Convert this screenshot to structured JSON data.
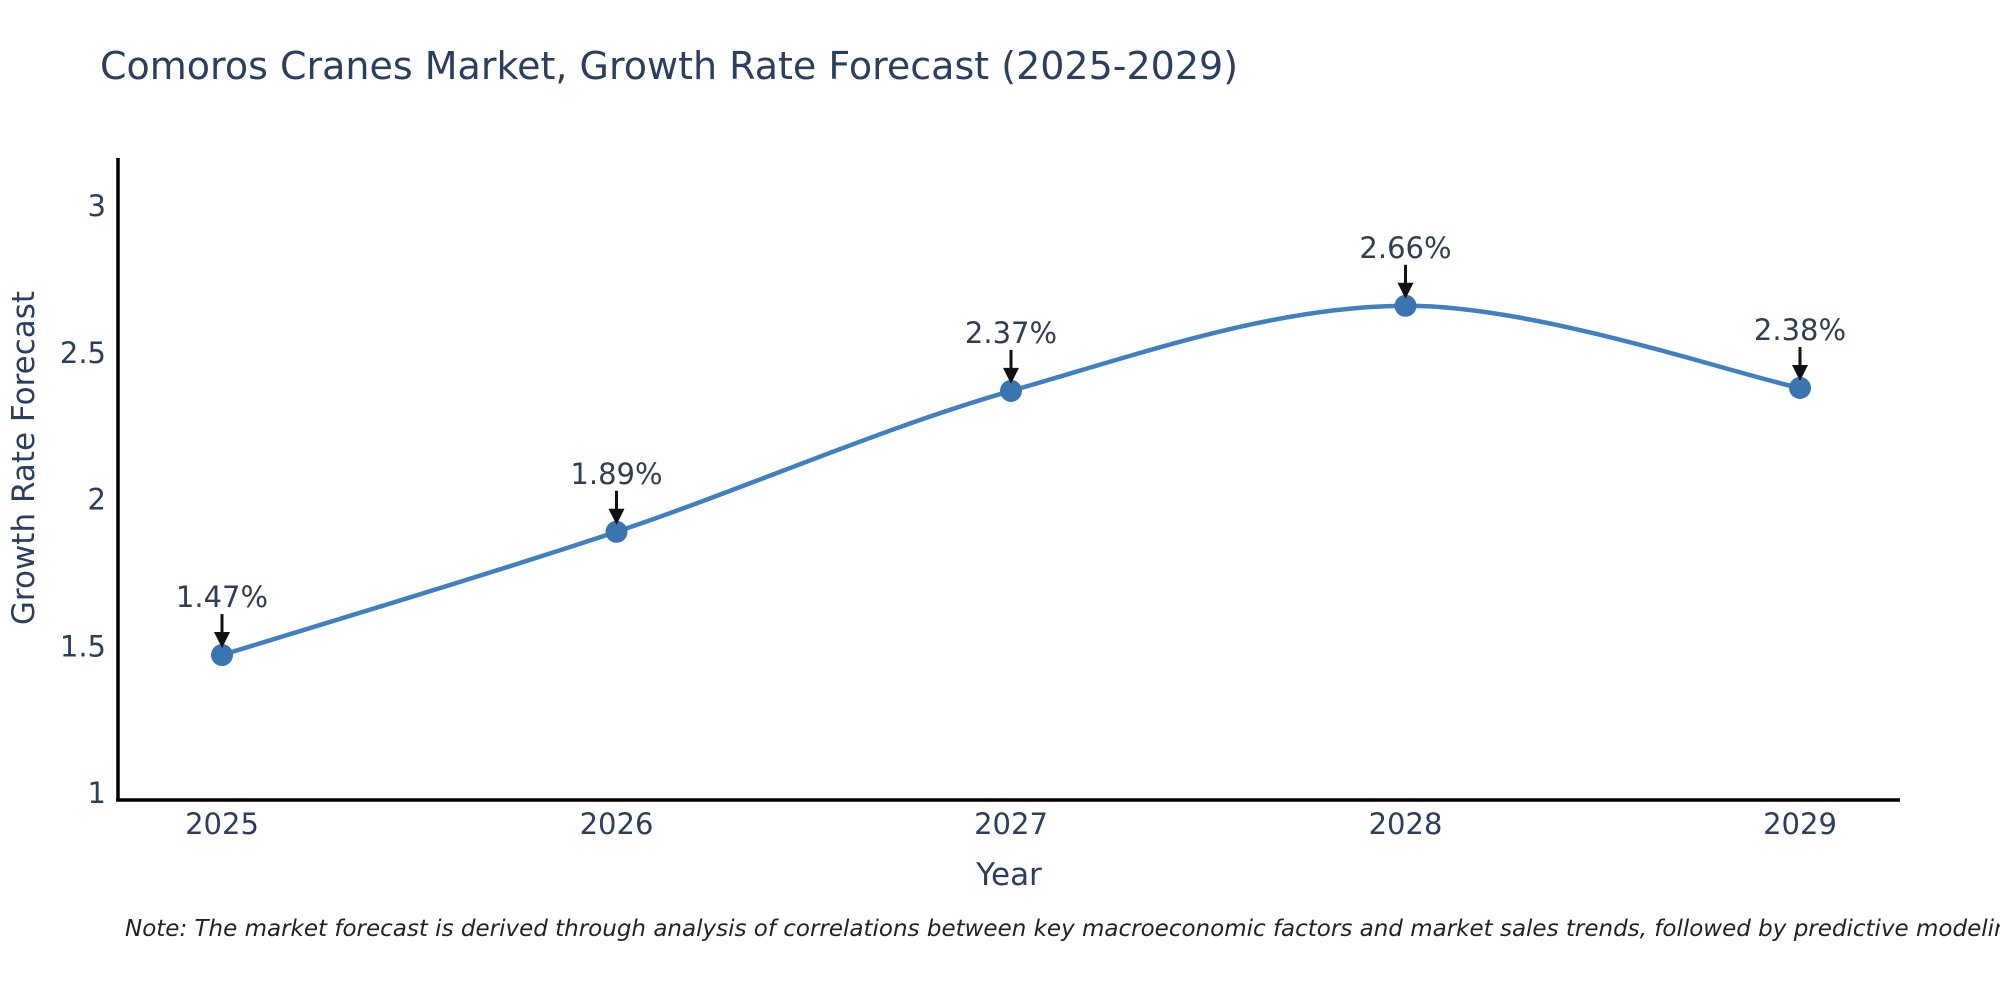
{
  "page": {
    "background_color": "#ffffff"
  },
  "chart_data": {
    "type": "line",
    "title": "Comoros Cranes Market, Growth Rate Forecast (2025-2029)",
    "xlabel": "Year",
    "ylabel": "Growth Rate Forecast",
    "x": [
      2025,
      2026,
      2027,
      2028,
      2029
    ],
    "y": [
      1.47,
      1.89,
      2.37,
      2.66,
      2.38
    ],
    "point_labels": [
      "1.47%",
      "1.89%",
      "2.37%",
      "2.66%",
      "2.38%"
    ],
    "xticks": [
      "2025",
      "2026",
      "2027",
      "2028",
      "2029"
    ],
    "yticks": [
      "1",
      "1.5",
      "2",
      "2.5",
      "3"
    ],
    "ytick_values": [
      1,
      1.5,
      2,
      2.5,
      3
    ],
    "xlim": [
      2024.74,
      2029.25
    ],
    "ylim": [
      0.97,
      3.18
    ],
    "grid": false,
    "legend": "none",
    "line_shape": "spline",
    "colors": {
      "line": "#4080bf",
      "marker": "#3a75b0",
      "axis": "#000000",
      "tick_text": "#2a3f5f",
      "annotation_text": "#2f3e52",
      "arrow": "#111111",
      "title_text": "#2a3f5f",
      "note_text": "#222222"
    },
    "note": "Note: The market forecast is derived through analysis of correlations between key macroeconomic factors and market sales trends, followed by predictive modeling to project future sales"
  }
}
